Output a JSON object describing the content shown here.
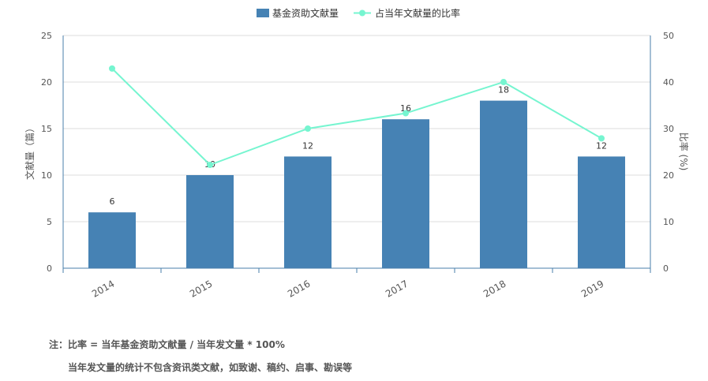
{
  "chart_data": {
    "type": "bar",
    "categories": [
      "2014",
      "2015",
      "2016",
      "2017",
      "2018",
      "2019"
    ],
    "series": [
      {
        "name": "基金资助文献量",
        "type": "bar",
        "axis": "left",
        "values": [
          6,
          10,
          12,
          16,
          18,
          12
        ],
        "color": "#4682b4"
      },
      {
        "name": "占当年文献量的比率",
        "type": "line",
        "axis": "right",
        "values": [
          42.9,
          22.2,
          30.0,
          33.3,
          40.0,
          27.9
        ],
        "color": "#76f5d0"
      }
    ],
    "ylabel": "文献量（篇）",
    "y2label": "比率 (%)",
    "ylim": [
      0,
      25
    ],
    "y2lim": [
      0,
      50
    ],
    "yticks": [
      0,
      5,
      10,
      15,
      20,
      25
    ],
    "y2ticks": [
      0,
      10,
      20,
      30,
      40,
      50
    ],
    "grid": true,
    "legend": "top-center"
  },
  "notes": {
    "line1": "注：比率 = 当年基金资助文献量 / 当年发文量 * 100%",
    "line2": "当年发文量的统计不包含资讯类文献，如致谢、稿约、启事、勘误等"
  }
}
